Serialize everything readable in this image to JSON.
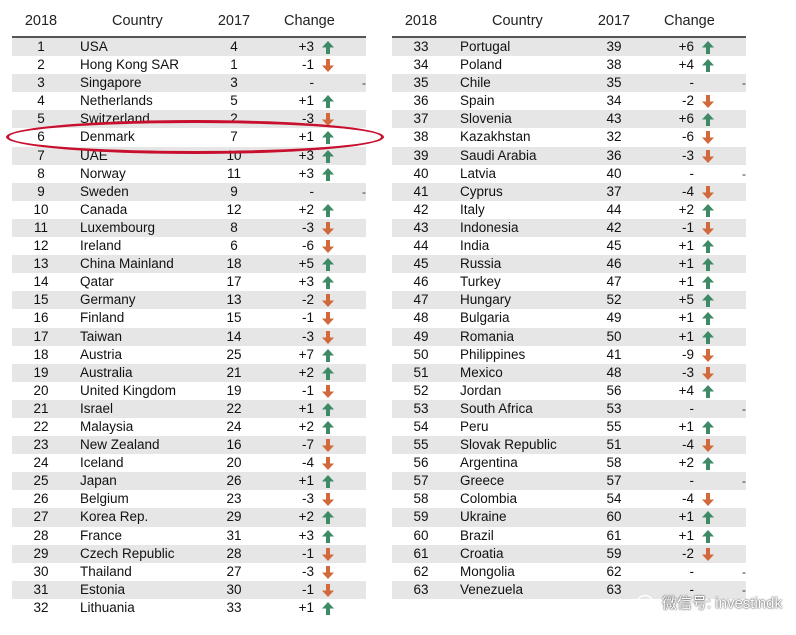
{
  "headers": {
    "rank": "2018",
    "country": "Country",
    "prev": "2017",
    "change": "Change"
  },
  "colors": {
    "up": "#3f8a66",
    "down": "#d2693c",
    "highlight": "#c8102e",
    "row_shade": "#e6e6e6"
  },
  "icons": {
    "up": "arrow-up-icon",
    "down": "arrow-down-icon",
    "none": "dash-icon"
  },
  "left": [
    {
      "rank": "1",
      "country": "USA",
      "prev": "4",
      "change": "+3",
      "dir": "up"
    },
    {
      "rank": "2",
      "country": "Hong Kong SAR",
      "prev": "1",
      "change": "-1",
      "dir": "down"
    },
    {
      "rank": "3",
      "country": "Singapore",
      "prev": "3",
      "change": "-",
      "dir": "none"
    },
    {
      "rank": "4",
      "country": "Netherlands",
      "prev": "5",
      "change": "+1",
      "dir": "up"
    },
    {
      "rank": "5",
      "country": "Switzerland",
      "prev": "2",
      "change": "-3",
      "dir": "down"
    },
    {
      "rank": "6",
      "country": "Denmark",
      "prev": "7",
      "change": "+1",
      "dir": "up"
    },
    {
      "rank": "7",
      "country": "UAE",
      "prev": "10",
      "change": "+3",
      "dir": "up"
    },
    {
      "rank": "8",
      "country": "Norway",
      "prev": "11",
      "change": "+3",
      "dir": "up"
    },
    {
      "rank": "9",
      "country": "Sweden",
      "prev": "9",
      "change": "-",
      "dir": "none"
    },
    {
      "rank": "10",
      "country": "Canada",
      "prev": "12",
      "change": "+2",
      "dir": "up"
    },
    {
      "rank": "11",
      "country": "Luxembourg",
      "prev": "8",
      "change": "-3",
      "dir": "down"
    },
    {
      "rank": "12",
      "country": "Ireland",
      "prev": "6",
      "change": "-6",
      "dir": "down"
    },
    {
      "rank": "13",
      "country": "China Mainland",
      "prev": "18",
      "change": "+5",
      "dir": "up"
    },
    {
      "rank": "14",
      "country": "Qatar",
      "prev": "17",
      "change": "+3",
      "dir": "up"
    },
    {
      "rank": "15",
      "country": "Germany",
      "prev": "13",
      "change": "-2",
      "dir": "down"
    },
    {
      "rank": "16",
      "country": "Finland",
      "prev": "15",
      "change": "-1",
      "dir": "down"
    },
    {
      "rank": "17",
      "country": "Taiwan",
      "prev": "14",
      "change": "-3",
      "dir": "down"
    },
    {
      "rank": "18",
      "country": "Austria",
      "prev": "25",
      "change": "+7",
      "dir": "up"
    },
    {
      "rank": "19",
      "country": "Australia",
      "prev": "21",
      "change": "+2",
      "dir": "up"
    },
    {
      "rank": "20",
      "country": "United Kingdom",
      "prev": "19",
      "change": "-1",
      "dir": "down"
    },
    {
      "rank": "21",
      "country": "Israel",
      "prev": "22",
      "change": "+1",
      "dir": "up"
    },
    {
      "rank": "22",
      "country": "Malaysia",
      "prev": "24",
      "change": "+2",
      "dir": "up"
    },
    {
      "rank": "23",
      "country": "New Zealand",
      "prev": "16",
      "change": "-7",
      "dir": "down"
    },
    {
      "rank": "24",
      "country": "Iceland",
      "prev": "20",
      "change": "-4",
      "dir": "down"
    },
    {
      "rank": "25",
      "country": "Japan",
      "prev": "26",
      "change": "+1",
      "dir": "up"
    },
    {
      "rank": "26",
      "country": "Belgium",
      "prev": "23",
      "change": "-3",
      "dir": "down"
    },
    {
      "rank": "27",
      "country": "Korea Rep.",
      "prev": "29",
      "change": "+2",
      "dir": "up"
    },
    {
      "rank": "28",
      "country": "France",
      "prev": "31",
      "change": "+3",
      "dir": "up"
    },
    {
      "rank": "29",
      "country": "Czech Republic",
      "prev": "28",
      "change": "-1",
      "dir": "down"
    },
    {
      "rank": "30",
      "country": "Thailand",
      "prev": "27",
      "change": "-3",
      "dir": "down"
    },
    {
      "rank": "31",
      "country": "Estonia",
      "prev": "30",
      "change": "-1",
      "dir": "down"
    },
    {
      "rank": "32",
      "country": "Lithuania",
      "prev": "33",
      "change": "+1",
      "dir": "up"
    }
  ],
  "right": [
    {
      "rank": "33",
      "country": "Portugal",
      "prev": "39",
      "change": "+6",
      "dir": "up"
    },
    {
      "rank": "34",
      "country": "Poland",
      "prev": "38",
      "change": "+4",
      "dir": "up"
    },
    {
      "rank": "35",
      "country": "Chile",
      "prev": "35",
      "change": "-",
      "dir": "none"
    },
    {
      "rank": "36",
      "country": "Spain",
      "prev": "34",
      "change": "-2",
      "dir": "down"
    },
    {
      "rank": "37",
      "country": "Slovenia",
      "prev": "43",
      "change": "+6",
      "dir": "up"
    },
    {
      "rank": "38",
      "country": "Kazakhstan",
      "prev": "32",
      "change": "-6",
      "dir": "down"
    },
    {
      "rank": "39",
      "country": "Saudi Arabia",
      "prev": "36",
      "change": "-3",
      "dir": "down"
    },
    {
      "rank": "40",
      "country": "Latvia",
      "prev": "40",
      "change": "-",
      "dir": "none"
    },
    {
      "rank": "41",
      "country": "Cyprus",
      "prev": "37",
      "change": "-4",
      "dir": "down"
    },
    {
      "rank": "42",
      "country": "Italy",
      "prev": "44",
      "change": "+2",
      "dir": "up"
    },
    {
      "rank": "43",
      "country": "Indonesia",
      "prev": "42",
      "change": "-1",
      "dir": "down"
    },
    {
      "rank": "44",
      "country": "India",
      "prev": "45",
      "change": "+1",
      "dir": "up"
    },
    {
      "rank": "45",
      "country": "Russia",
      "prev": "46",
      "change": "+1",
      "dir": "up"
    },
    {
      "rank": "46",
      "country": "Turkey",
      "prev": "47",
      "change": "+1",
      "dir": "up"
    },
    {
      "rank": "47",
      "country": "Hungary",
      "prev": "52",
      "change": "+5",
      "dir": "up"
    },
    {
      "rank": "48",
      "country": "Bulgaria",
      "prev": "49",
      "change": "+1",
      "dir": "up"
    },
    {
      "rank": "49",
      "country": "Romania",
      "prev": "50",
      "change": "+1",
      "dir": "up"
    },
    {
      "rank": "50",
      "country": "Philippines",
      "prev": "41",
      "change": "-9",
      "dir": "down"
    },
    {
      "rank": "51",
      "country": "Mexico",
      "prev": "48",
      "change": "-3",
      "dir": "down"
    },
    {
      "rank": "52",
      "country": "Jordan",
      "prev": "56",
      "change": "+4",
      "dir": "up"
    },
    {
      "rank": "53",
      "country": "South Africa",
      "prev": "53",
      "change": "-",
      "dir": "none"
    },
    {
      "rank": "54",
      "country": "Peru",
      "prev": "55",
      "change": "+1",
      "dir": "up"
    },
    {
      "rank": "55",
      "country": "Slovak Republic",
      "prev": "51",
      "change": "-4",
      "dir": "down"
    },
    {
      "rank": "56",
      "country": "Argentina",
      "prev": "58",
      "change": "+2",
      "dir": "up"
    },
    {
      "rank": "57",
      "country": "Greece",
      "prev": "57",
      "change": "-",
      "dir": "none"
    },
    {
      "rank": "58",
      "country": "Colombia",
      "prev": "54",
      "change": "-4",
      "dir": "down"
    },
    {
      "rank": "59",
      "country": "Ukraine",
      "prev": "60",
      "change": "+1",
      "dir": "up"
    },
    {
      "rank": "60",
      "country": "Brazil",
      "prev": "61",
      "change": "+1",
      "dir": "up"
    },
    {
      "rank": "61",
      "country": "Croatia",
      "prev": "59",
      "change": "-2",
      "dir": "down"
    },
    {
      "rank": "62",
      "country": "Mongolia",
      "prev": "62",
      "change": "-",
      "dir": "none"
    },
    {
      "rank": "63",
      "country": "Venezuela",
      "prev": "63",
      "change": "-",
      "dir": "none"
    }
  ],
  "watermark": "微信号: investindk"
}
